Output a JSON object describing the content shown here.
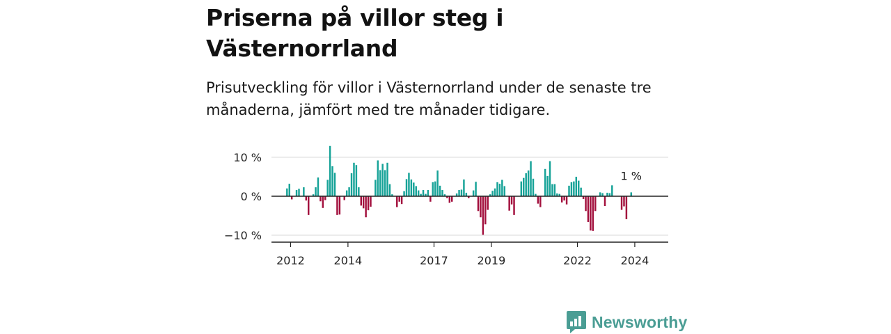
{
  "header": {
    "title": "Priserna på villor steg i Västernorrland",
    "subtitle": "Prisutveckling för villor i Västernorrland under de senaste tre månaderna, jämfört med tre månader tidigare."
  },
  "brand": {
    "name": "Newsworthy",
    "icon": "newsworthy-logo-icon",
    "color": "#4a9d94"
  },
  "chart_data": {
    "type": "bar",
    "x_start": "2011-11",
    "x_step": "month",
    "xlim": [
      "2011-05",
      "2025-03"
    ],
    "x_ticks": [
      "2012",
      "2014",
      "2017",
      "2019",
      "2022",
      "2024"
    ],
    "y_ticks": [
      "10 %",
      "0 %",
      "−10 %"
    ],
    "y_tick_values": [
      10,
      0,
      -10
    ],
    "ylim": [
      -12,
      14
    ],
    "grid": true,
    "colors": {
      "positive": "#17a398",
      "negative": "#a3113e"
    },
    "last_label": "1 %",
    "values": [
      2,
      3.2,
      -0.8,
      0,
      1.6,
      1.9,
      0,
      2.3,
      -1.1,
      -4.8,
      0,
      0.5,
      2.3,
      4.8,
      -1.3,
      -3,
      -1,
      4.2,
      12.9,
      7.7,
      6,
      -4.8,
      -4.7,
      0,
      -1,
      1.5,
      2.3,
      5.9,
      8.6,
      8,
      2.3,
      -2.4,
      -3.1,
      -5.4,
      -3.6,
      -2.7,
      0,
      4.2,
      9.2,
      6.7,
      8.3,
      6.7,
      8.6,
      3.1,
      0.5,
      0,
      -2.8,
      -1.4,
      -2,
      1.3,
      4.4,
      6,
      4.3,
      3.5,
      2.6,
      1.5,
      0.6,
      1.6,
      0.6,
      1.6,
      -1.4,
      3.6,
      3.8,
      6.6,
      2.7,
      1.6,
      0.5,
      -0.5,
      -1.7,
      -1.4,
      0,
      0.7,
      1.6,
      1.7,
      4.3,
      0.9,
      -0.5,
      0,
      1.5,
      3.7,
      -3.8,
      -5.4,
      -9.9,
      -7.2,
      -3.5,
      0.5,
      1.4,
      2,
      3.6,
      3.2,
      4.2,
      2.6,
      0,
      -3.7,
      -2.1,
      -4.8,
      0,
      0,
      3.8,
      4.7,
      5.9,
      6.6,
      9,
      4.5,
      0.6,
      -1.9,
      -2.8,
      0,
      7,
      5.2,
      9,
      3.1,
      3.1,
      0.7,
      0.6,
      -1.6,
      -1.1,
      -2.1,
      2.7,
      3.6,
      3.8,
      5,
      4,
      2.2,
      -0.7,
      -3.8,
      -6.6,
      -8.8,
      -8.9,
      -3.8,
      0,
      1,
      0.8,
      -2.5,
      0.9,
      0.8,
      2.8,
      0,
      0,
      0,
      -3.5,
      -2.6,
      -5.9,
      0,
      1
    ]
  }
}
